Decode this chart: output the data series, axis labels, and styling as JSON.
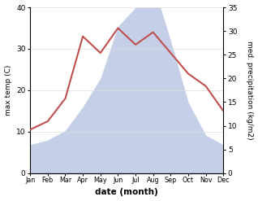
{
  "months": [
    "Jan",
    "Feb",
    "Mar",
    "Apr",
    "May",
    "Jun",
    "Jul",
    "Aug",
    "Sep",
    "Oct",
    "Nov",
    "Dec"
  ],
  "temperature": [
    10.5,
    12.5,
    18.0,
    33.0,
    29.0,
    35.0,
    31.0,
    34.0,
    29.0,
    24.0,
    21.0,
    15.0
  ],
  "precipitation": [
    6.0,
    7.0,
    9.0,
    14.0,
    20.0,
    31.0,
    35.0,
    40.0,
    28.0,
    15.0,
    8.0,
    6.0
  ],
  "temp_ylim": [
    0,
    40
  ],
  "precip_ylim": [
    0,
    35
  ],
  "temp_color": "#c0504d",
  "precip_fill_color": "#c5cfe8",
  "xlabel": "date (month)",
  "ylabel_left": "max temp (C)",
  "ylabel_right": "med. precipitation (kg/m2)",
  "temp_yticks": [
    0,
    10,
    20,
    30,
    40
  ],
  "precip_yticks": [
    0,
    5,
    10,
    15,
    20,
    25,
    30,
    35
  ],
  "background_color": "#ffffff"
}
